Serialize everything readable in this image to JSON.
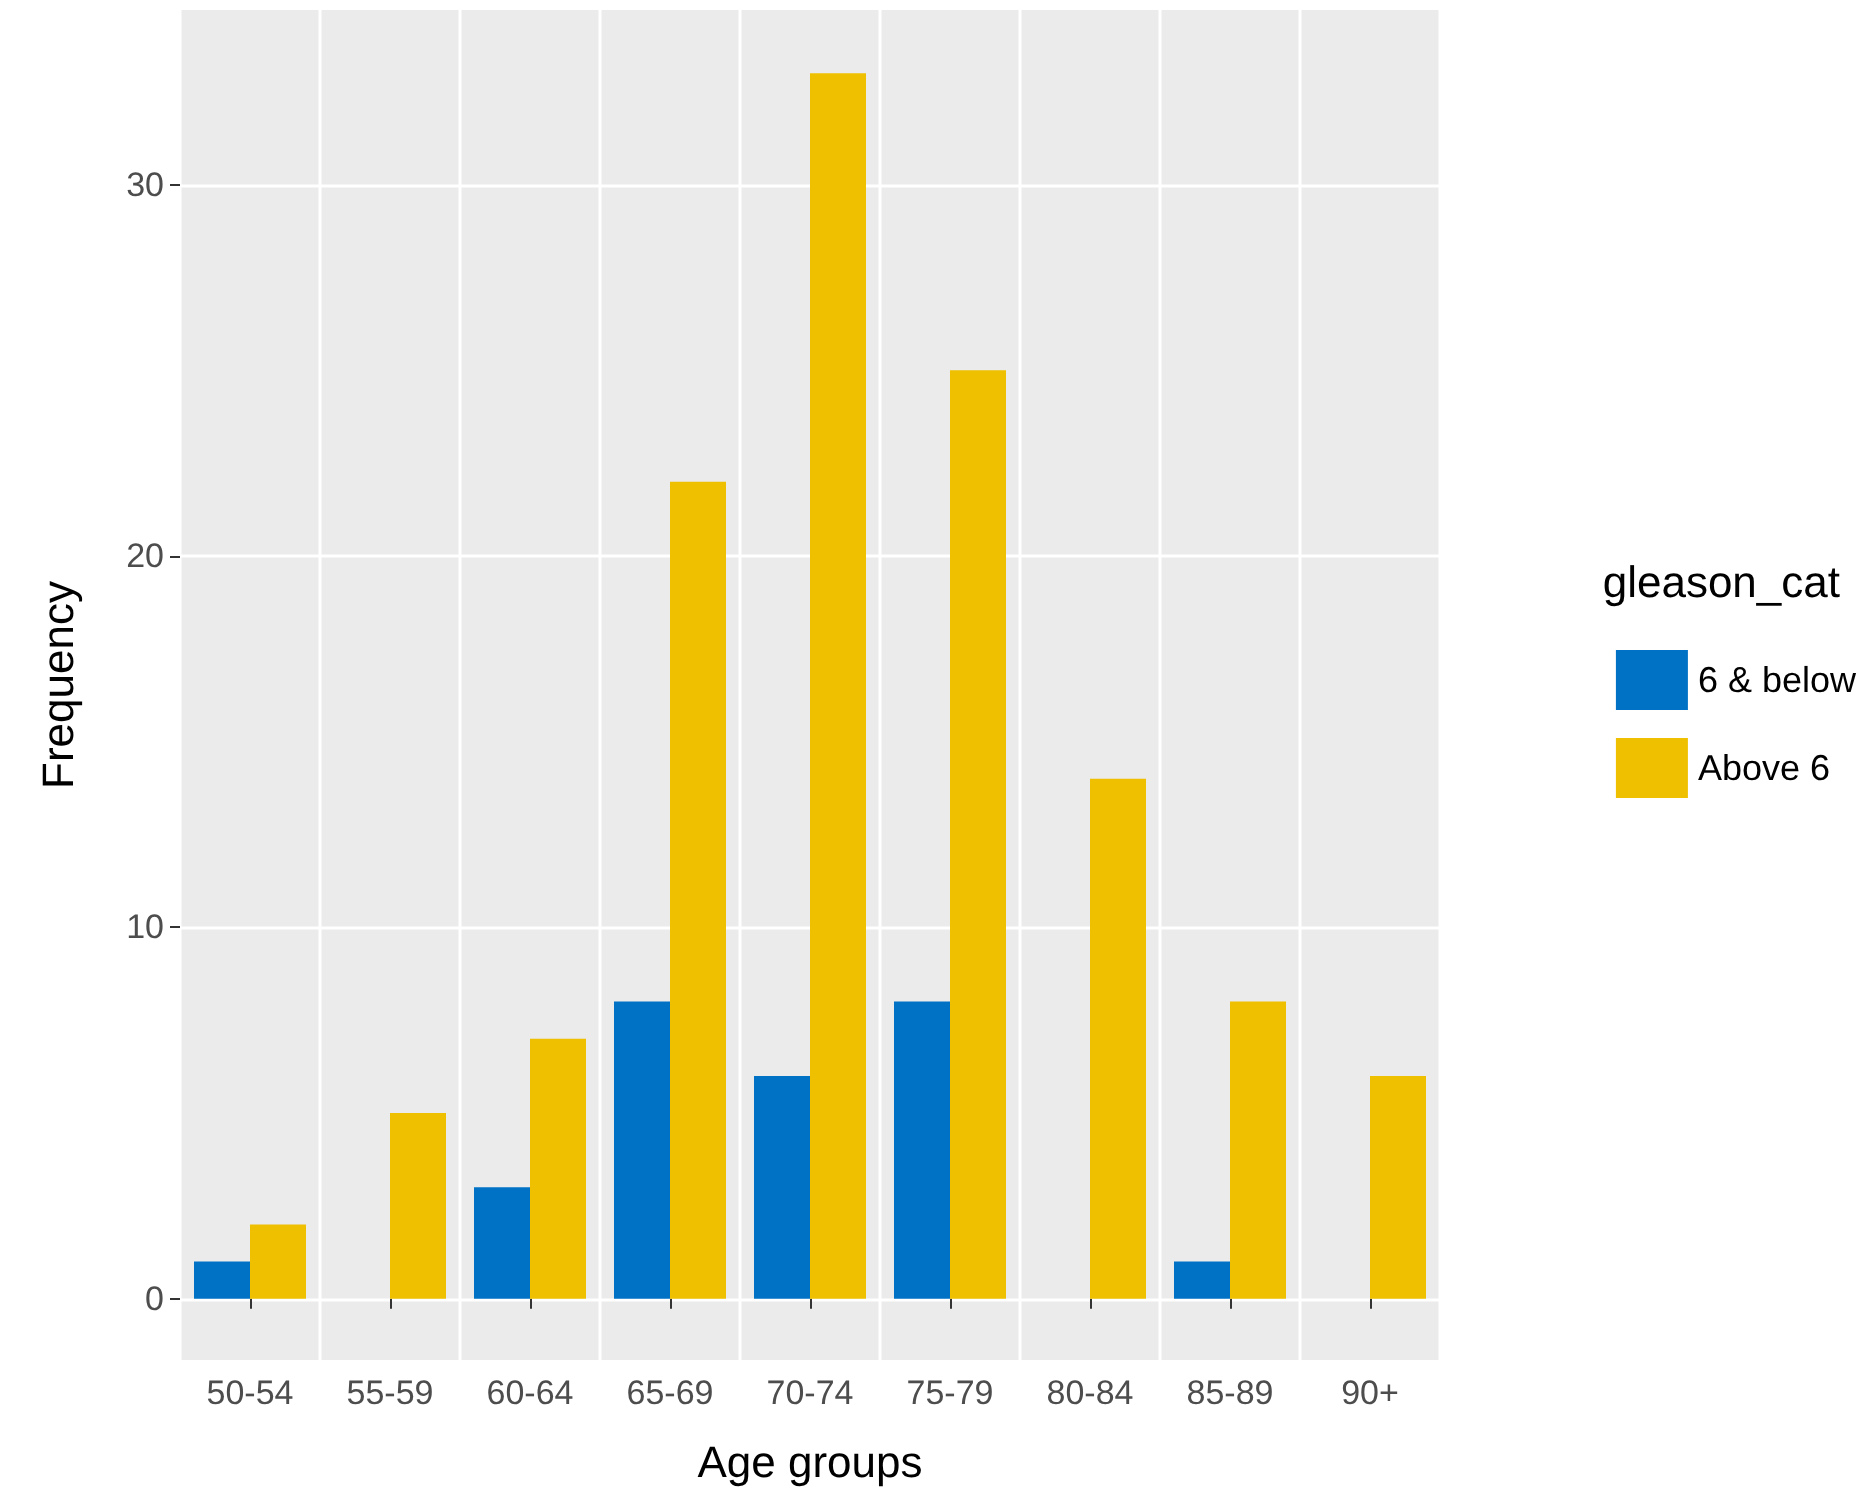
{
  "chart_data": {
    "type": "bar",
    "xlabel": "Age groups",
    "ylabel": "Frequency",
    "legend_title": "gleason_cat",
    "categories": [
      "50-54",
      "55-59",
      "60-64",
      "65-69",
      "70-74",
      "75-79",
      "80-84",
      "85-89",
      "90+"
    ],
    "series": [
      {
        "name": "6 & below",
        "color": "#0072c6",
        "values": [
          1,
          0,
          3,
          8,
          6,
          8,
          0,
          1,
          0
        ]
      },
      {
        "name": "Above 6",
        "color": "#efc000",
        "values": [
          2,
          5,
          7,
          22,
          33,
          25,
          14,
          8,
          6
        ]
      }
    ],
    "ylim": [
      -1.65,
      34.7
    ],
    "yticks": [
      0,
      10,
      20,
      30
    ],
    "grid": true,
    "legend": "right"
  }
}
